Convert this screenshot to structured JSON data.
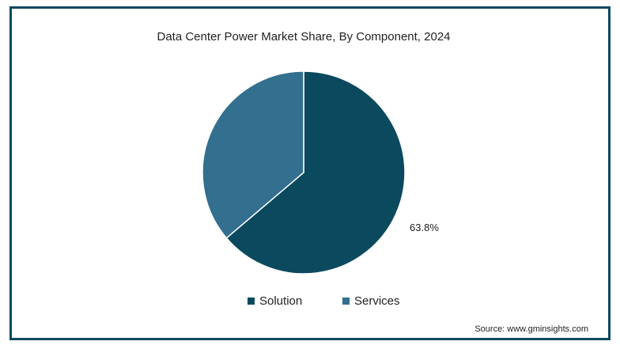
{
  "chart_data": {
    "type": "pie",
    "title": "Data Center Power Market Share, By Component, 2024",
    "categories": [
      "Solution",
      "Services"
    ],
    "values": [
      63.8,
      36.2
    ],
    "value_labels": [
      "63.8%",
      null
    ],
    "colors": [
      "#0b4a5e",
      "#336f8e"
    ],
    "source": "Source: www.gminsights.com"
  }
}
